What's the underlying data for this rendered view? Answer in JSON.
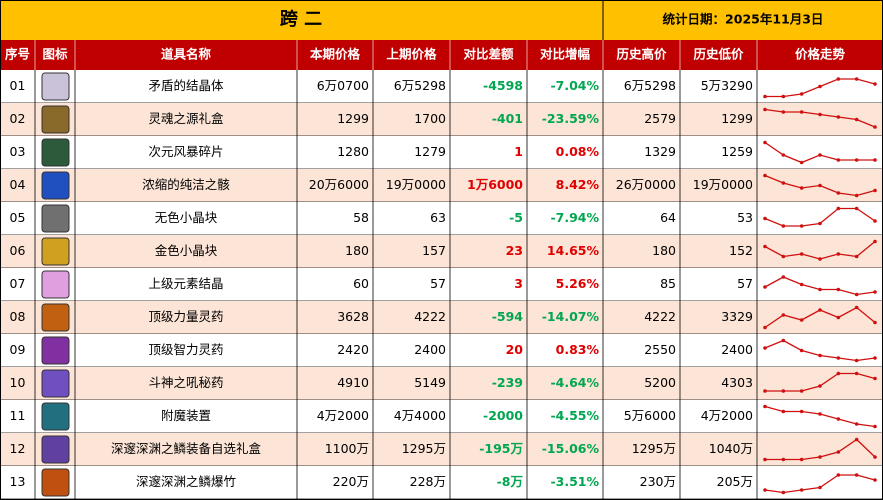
{
  "title": "跨 二",
  "date": "统计日期：2025年11月3日",
  "header": [
    "序号",
    "图标",
    "道具名称",
    "本期价格",
    "上期价格",
    "对比差额",
    "对比增幅",
    "历史高价",
    "历史低价",
    "价格走势"
  ],
  "change_colors": {
    "up": "#e00000",
    "down": "#00a650"
  },
  "trend_color": "#d01010",
  "rows": [
    {
      "no": "01",
      "name": "矛盾的结晶体",
      "current": "6万0700",
      "previous": "6万5298",
      "diff": "-4598",
      "pct": "-7.04%",
      "high": "6万5298",
      "low": "5万3290",
      "direction": "down",
      "trend": [
        1,
        1,
        2,
        5,
        8,
        8,
        6
      ]
    },
    {
      "no": "02",
      "name": "灵魂之源礼盒",
      "current": "1299",
      "previous": "1700",
      "diff": "-401",
      "pct": "-23.59%",
      "high": "2579",
      "low": "1299",
      "direction": "down",
      "trend": [
        9,
        8,
        8,
        7,
        6,
        5,
        2
      ]
    },
    {
      "no": "03",
      "name": "次元风暴碎片",
      "current": "1280",
      "previous": "1279",
      "diff": "1",
      "pct": "0.08%",
      "high": "1329",
      "low": "1259",
      "direction": "up",
      "trend": [
        9,
        4,
        1,
        4,
        2,
        2,
        2
      ]
    },
    {
      "no": "04",
      "name": "浓缩的纯洁之骸",
      "current": "20万6000",
      "previous": "19万0000",
      "diff": "1万6000",
      "pct": "8.42%",
      "high": "26万0000",
      "low": "19万0000",
      "direction": "up",
      "trend": [
        9,
        6,
        4,
        5,
        2,
        1,
        3
      ]
    },
    {
      "no": "05",
      "name": "无色小晶块",
      "current": "58",
      "previous": "63",
      "diff": "-5",
      "pct": "-7.94%",
      "high": "64",
      "low": "53",
      "direction": "down",
      "trend": [
        5,
        2,
        2,
        3,
        9,
        9,
        4
      ]
    },
    {
      "no": "06",
      "name": "金色小晶块",
      "current": "180",
      "previous": "157",
      "diff": "23",
      "pct": "14.65%",
      "high": "180",
      "low": "152",
      "direction": "up",
      "trend": [
        7,
        3,
        4,
        2,
        4,
        3,
        9
      ]
    },
    {
      "no": "07",
      "name": "上级元素结晶",
      "current": "60",
      "previous": "57",
      "diff": "3",
      "pct": "5.26%",
      "high": "85",
      "low": "57",
      "direction": "up",
      "trend": [
        4,
        8,
        5,
        3,
        3,
        1,
        2
      ]
    },
    {
      "no": "08",
      "name": "顶级力量灵药",
      "current": "3628",
      "previous": "4222",
      "diff": "-594",
      "pct": "-14.07%",
      "high": "4222",
      "low": "3329",
      "direction": "down",
      "trend": [
        1,
        6,
        4,
        8,
        5,
        9,
        3
      ]
    },
    {
      "no": "09",
      "name": "顶级智力灵药",
      "current": "2420",
      "previous": "2400",
      "diff": "20",
      "pct": "0.83%",
      "high": "2550",
      "low": "2400",
      "direction": "up",
      "trend": [
        6,
        9,
        5,
        3,
        2,
        1,
        2
      ]
    },
    {
      "no": "10",
      "name": "斗神之吼秘药",
      "current": "4910",
      "previous": "5149",
      "diff": "-239",
      "pct": "-4.64%",
      "high": "5200",
      "low": "4303",
      "direction": "down",
      "trend": [
        2,
        2,
        2,
        4,
        9,
        9,
        7
      ]
    },
    {
      "no": "11",
      "name": "附魔装置",
      "current": "4万2000",
      "previous": "4万4000",
      "diff": "-2000",
      "pct": "-4.55%",
      "high": "5万6000",
      "low": "4万2000",
      "direction": "down",
      "trend": [
        9,
        7,
        7,
        6,
        4,
        2,
        1
      ]
    },
    {
      "no": "12",
      "name": "深邃深渊之鳞装备自选礼盒",
      "current": "1100万",
      "previous": "1295万",
      "diff": "-195万",
      "pct": "-15.06%",
      "high": "1295万",
      "low": "1040万",
      "direction": "down",
      "trend": [
        1,
        1,
        1,
        2,
        4,
        9,
        2
      ]
    },
    {
      "no": "13",
      "name": "深邃深渊之鳞爆竹",
      "current": "220万",
      "previous": "228万",
      "diff": "-8万",
      "pct": "-3.51%",
      "high": "230万",
      "low": "205万",
      "direction": "down",
      "trend": [
        2,
        1,
        2,
        3,
        8,
        8,
        6
      ]
    }
  ]
}
